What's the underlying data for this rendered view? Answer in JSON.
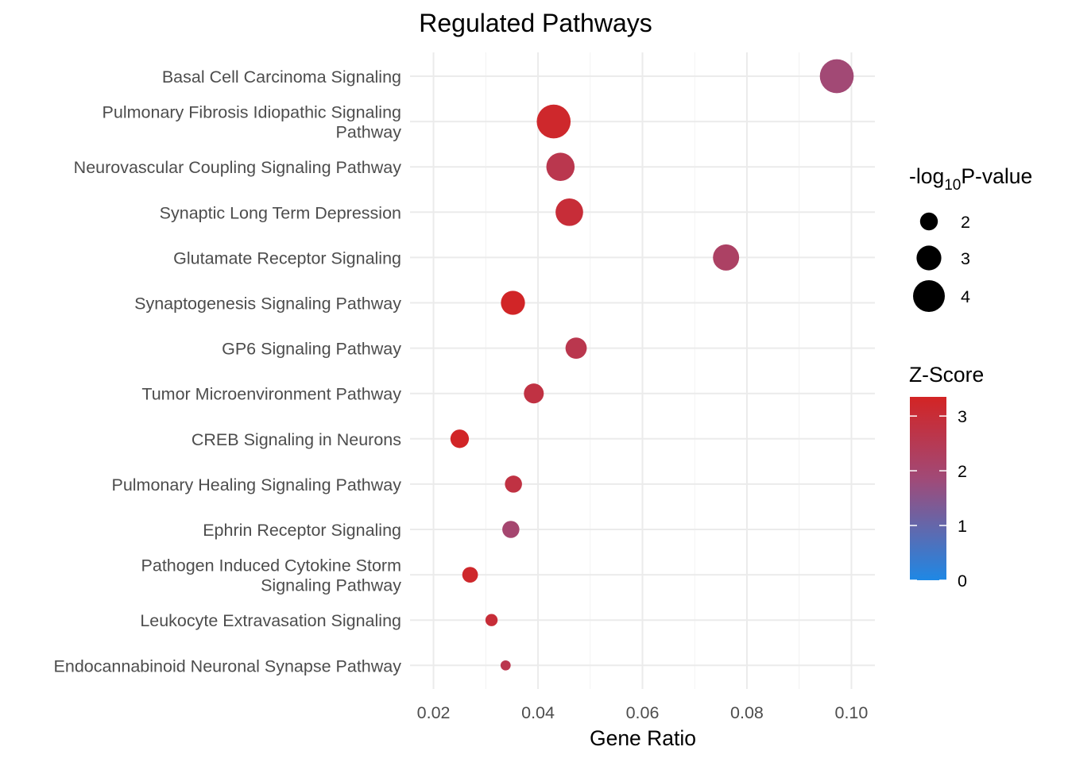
{
  "chart_data": {
    "type": "scatter",
    "title": "Regulated Pathways",
    "xlabel": "Gene Ratio",
    "ylabel": "",
    "xlim": [
      0.0155,
      0.1045
    ],
    "xticks": [
      0.02,
      0.04,
      0.06,
      0.08,
      0.1
    ],
    "xtick_labels": [
      "0.02",
      "0.04",
      "0.06",
      "0.08",
      "0.10"
    ],
    "grid": true,
    "points": [
      {
        "pathway_lines": [
          "Basal Cell Carcinoma Signaling"
        ],
        "gene_ratio": 0.0972,
        "neg_log10_p": 4.3,
        "z_score": 1.9
      },
      {
        "pathway_lines": [
          "Pulmonary Fibrosis Idiopathic Signaling",
          "Pathway"
        ],
        "gene_ratio": 0.043,
        "neg_log10_p": 4.3,
        "z_score": 3.2
      },
      {
        "pathway_lines": [
          "Neurovascular Coupling Signaling Pathway"
        ],
        "gene_ratio": 0.0443,
        "neg_log10_p": 3.5,
        "z_score": 2.6
      },
      {
        "pathway_lines": [
          "Synaptic Long Term Depression"
        ],
        "gene_ratio": 0.046,
        "neg_log10_p": 3.4,
        "z_score": 3.0
      },
      {
        "pathway_lines": [
          "Glutamate Receptor Signaling"
        ],
        "gene_ratio": 0.076,
        "neg_log10_p": 3.2,
        "z_score": 2.2
      },
      {
        "pathway_lines": [
          "Synaptogenesis Signaling Pathway"
        ],
        "gene_ratio": 0.0352,
        "neg_log10_p": 2.9,
        "z_score": 3.3
      },
      {
        "pathway_lines": [
          "GP6 Signaling Pathway"
        ],
        "gene_ratio": 0.0473,
        "neg_log10_p": 2.5,
        "z_score": 2.6
      },
      {
        "pathway_lines": [
          "Tumor Microenvironment Pathway"
        ],
        "gene_ratio": 0.0392,
        "neg_log10_p": 2.3,
        "z_score": 2.8
      },
      {
        "pathway_lines": [
          "CREB Signaling in Neurons"
        ],
        "gene_ratio": 0.025,
        "neg_log10_p": 2.1,
        "z_score": 3.3
      },
      {
        "pathway_lines": [
          "Pulmonary Healing Signaling Pathway"
        ],
        "gene_ratio": 0.0353,
        "neg_log10_p": 1.9,
        "z_score": 2.8
      },
      {
        "pathway_lines": [
          "Ephrin Receptor Signaling"
        ],
        "gene_ratio": 0.0348,
        "neg_log10_p": 1.9,
        "z_score": 2.0
      },
      {
        "pathway_lines": [
          "Pathogen Induced Cytokine Storm",
          "Signaling Pathway"
        ],
        "gene_ratio": 0.027,
        "neg_log10_p": 1.7,
        "z_score": 3.2
      },
      {
        "pathway_lines": [
          "Leukocyte Extravasation Signaling"
        ],
        "gene_ratio": 0.0311,
        "neg_log10_p": 1.2,
        "z_score": 3.0
      },
      {
        "pathway_lines": [
          "Endocannabinoid Neuronal Synapse Pathway"
        ],
        "gene_ratio": 0.0338,
        "neg_log10_p": 0.9,
        "z_score": 2.6
      }
    ],
    "size_legend": {
      "title_prefix": "-log",
      "title_sub": "10",
      "title_suffix": "P-value",
      "entries": [
        {
          "label": "2",
          "value": 2
        },
        {
          "label": "3",
          "value": 3
        },
        {
          "label": "4",
          "value": 4
        }
      ]
    },
    "color_legend": {
      "title": "Z-Score",
      "range": [
        0,
        3.35
      ],
      "low_color": "#1e88e5",
      "mid_color": "#a04a78",
      "high_color": "#d32424",
      "ticks": [
        {
          "label": "0",
          "value": 0
        },
        {
          "label": "1",
          "value": 1
        },
        {
          "label": "2",
          "value": 2
        },
        {
          "label": "3",
          "value": 3
        }
      ]
    }
  }
}
